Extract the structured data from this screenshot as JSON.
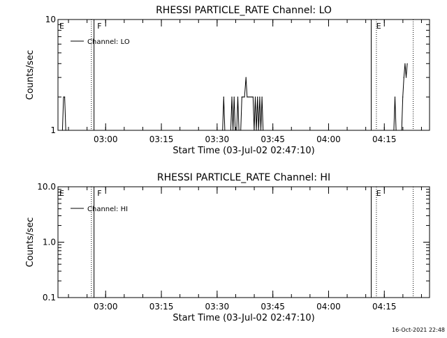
{
  "footer_timestamp": "16-Oct-2021 22:48",
  "chart_data": [
    {
      "type": "line",
      "title": "RHESSI PARTICLE_RATE Channel: LO",
      "xlabel": "Start Time (03-Jul-02 02:47:10)",
      "ylabel": "Counts/sec",
      "y_scale": "log",
      "ylim": [
        1,
        10
      ],
      "y_ticks": [
        {
          "value": 1,
          "label": "1"
        },
        {
          "value": 10,
          "label": "10"
        }
      ],
      "xlim_minutes": [
        0,
        100
      ],
      "x_ticks": [
        {
          "value": 12.83,
          "label": "03:00"
        },
        {
          "value": 27.83,
          "label": "03:15"
        },
        {
          "value": 42.83,
          "label": "03:30"
        },
        {
          "value": 57.83,
          "label": "03:45"
        },
        {
          "value": 72.83,
          "label": "04:00"
        },
        {
          "value": 87.83,
          "label": "04:15"
        }
      ],
      "x_minor_step": 5,
      "legend": {
        "label": "Channel: LO",
        "position": "top-left"
      },
      "solid_lines_minutes": [
        9.7,
        84.3
      ],
      "dotted_lines_minutes": [
        9.0,
        85.7,
        95.6
      ],
      "flags": [
        {
          "label": "E",
          "x": 0
        },
        {
          "label": "F",
          "x": 10.2
        },
        {
          "label": "E",
          "x": 85.3
        }
      ],
      "series": [
        {
          "name": "Channel: LO",
          "points": [
            [
              1.2,
              1
            ],
            [
              1.5,
              2
            ],
            [
              1.8,
              2
            ],
            [
              2.1,
              1
            ],
            [
              44.3,
              1
            ],
            [
              44.6,
              2
            ],
            [
              44.9,
              1
            ],
            [
              46.5,
              1
            ],
            [
              46.8,
              2
            ],
            [
              47.1,
              1
            ],
            [
              47.4,
              2
            ],
            [
              47.7,
              1
            ],
            [
              48.1,
              1
            ],
            [
              48.4,
              2
            ],
            [
              48.7,
              1
            ],
            [
              49.2,
              1
            ],
            [
              49.5,
              2
            ],
            [
              49.8,
              2
            ],
            [
              50.2,
              2
            ],
            [
              50.6,
              3
            ],
            [
              50.9,
              2
            ],
            [
              51.3,
              2
            ],
            [
              51.7,
              2
            ],
            [
              52.1,
              2
            ],
            [
              52.5,
              2
            ],
            [
              52.8,
              1
            ],
            [
              53.1,
              2
            ],
            [
              53.4,
              1
            ],
            [
              53.7,
              2
            ],
            [
              54.0,
              1
            ],
            [
              54.3,
              2
            ],
            [
              54.6,
              1
            ],
            [
              54.9,
              2
            ],
            [
              55.2,
              1
            ],
            [
              90.4,
              1
            ],
            [
              90.7,
              2
            ],
            [
              91.0,
              1
            ],
            [
              92.5,
              1
            ],
            [
              92.8,
              2
            ],
            [
              93.1,
              3
            ],
            [
              93.4,
              4
            ],
            [
              93.7,
              3
            ],
            [
              94.0,
              4
            ]
          ]
        }
      ]
    },
    {
      "type": "line",
      "title": "RHESSI PARTICLE_RATE Channel: HI",
      "xlabel": "Start Time (03-Jul-02 02:47:10)",
      "ylabel": "Counts/sec",
      "y_scale": "log",
      "ylim": [
        0.1,
        10
      ],
      "y_ticks": [
        {
          "value": 0.1,
          "label": "0.1"
        },
        {
          "value": 1,
          "label": "1.0"
        },
        {
          "value": 10,
          "label": "10.0"
        }
      ],
      "xlim_minutes": [
        0,
        100
      ],
      "x_ticks": [
        {
          "value": 12.83,
          "label": "03:00"
        },
        {
          "value": 27.83,
          "label": "03:15"
        },
        {
          "value": 42.83,
          "label": "03:30"
        },
        {
          "value": 57.83,
          "label": "03:45"
        },
        {
          "value": 72.83,
          "label": "04:00"
        },
        {
          "value": 87.83,
          "label": "04:15"
        }
      ],
      "x_minor_step": 5,
      "legend": {
        "label": "Channel: HI",
        "position": "top-left"
      },
      "solid_lines_minutes": [
        9.7,
        84.3
      ],
      "dotted_lines_minutes": [
        9.0,
        85.7,
        95.6
      ],
      "flags": [
        {
          "label": "E",
          "x": 0
        },
        {
          "label": "F",
          "x": 10.2
        },
        {
          "label": "E",
          "x": 85.3
        }
      ],
      "series": [
        {
          "name": "Channel: HI",
          "points": []
        }
      ]
    }
  ]
}
